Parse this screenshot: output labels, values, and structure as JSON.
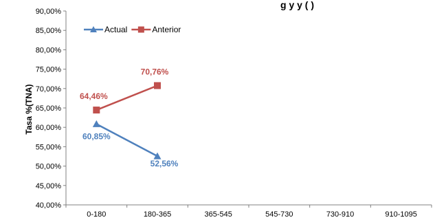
{
  "title_fragment": "g  y  y  (  )",
  "chart_data": {
    "type": "line",
    "title": "",
    "xlabel": "",
    "ylabel": "Tasa %(TNA)",
    "categories": [
      "0-180",
      "180-365",
      "365-545",
      "545-730",
      "730-910",
      "910-1095"
    ],
    "ylim": [
      40,
      90
    ],
    "ystep": 5,
    "grid": false,
    "legend": "top-left",
    "series": [
      {
        "name": "Actual",
        "color": "#4F81BD",
        "marker": "triangle",
        "values": [
          60.85,
          52.56,
          null,
          null,
          null,
          null
        ],
        "labels": [
          "60,85%",
          "52,56%"
        ]
      },
      {
        "name": "Anterior",
        "color": "#C0504D",
        "marker": "square",
        "values": [
          64.46,
          70.76,
          null,
          null,
          null,
          null
        ],
        "labels": [
          "64,46%",
          "70,76%"
        ]
      }
    ]
  }
}
